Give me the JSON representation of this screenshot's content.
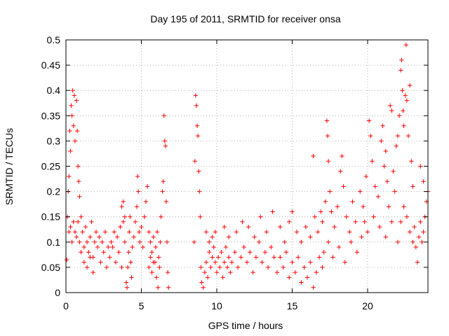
{
  "chart_data": {
    "type": "scatter",
    "title": "Day 195 of 2011, SRMTID for receiver onsa",
    "xlabel": "GPS time / hours",
    "ylabel": "SRMTID / TECUs",
    "xlim": [
      0,
      24
    ],
    "ylim": [
      0,
      0.5
    ],
    "x_ticks": [
      0,
      5,
      10,
      15,
      20
    ],
    "x_tick_labels": [
      "0",
      "5",
      "10",
      "15",
      "20"
    ],
    "y_ticks": [
      0,
      0.05,
      0.1,
      0.15,
      0.2,
      0.25,
      0.3,
      0.35,
      0.4,
      0.45,
      0.5
    ],
    "y_tick_labels": [
      "0",
      "0.05",
      "0.1",
      "0.15",
      "0.2",
      "0.25",
      "0.3",
      "0.35",
      "0.4",
      "0.45",
      "0.5"
    ],
    "grid": true,
    "marker": "+",
    "marker_color": "#ff0000",
    "series": [
      {
        "name": "SRMTID",
        "points": [
          [
            0.05,
            0.065
          ],
          [
            0.1,
            0.15
          ],
          [
            0.15,
            0.2
          ],
          [
            0.2,
            0.23
          ],
          [
            0.25,
            0.32
          ],
          [
            0.3,
            0.28
          ],
          [
            0.35,
            0.37
          ],
          [
            0.4,
            0.35
          ],
          [
            0.45,
            0.4
          ],
          [
            0.5,
            0.33
          ],
          [
            0.55,
            0.39
          ],
          [
            0.6,
            0.3
          ],
          [
            0.7,
            0.38
          ],
          [
            0.75,
            0.32
          ],
          [
            0.8,
            0.25
          ],
          [
            0.85,
            0.22
          ],
          [
            0.9,
            0.19
          ],
          [
            0.2,
            0.12
          ],
          [
            0.3,
            0.13
          ],
          [
            0.4,
            0.1
          ],
          [
            0.5,
            0.14
          ],
          [
            0.6,
            0.12
          ],
          [
            0.7,
            0.11
          ],
          [
            0.8,
            0.14
          ],
          [
            0.9,
            0.1
          ],
          [
            1.0,
            0.15
          ],
          [
            1.1,
            0.12
          ],
          [
            1.2,
            0.09
          ],
          [
            1.3,
            0.13
          ],
          [
            1.4,
            0.1
          ],
          [
            1.5,
            0.08
          ],
          [
            1.6,
            0.11
          ],
          [
            1.7,
            0.14
          ],
          [
            1.8,
            0.07
          ],
          [
            1.9,
            0.1
          ],
          [
            2.0,
            0.12
          ],
          [
            1.0,
            0.08
          ],
          [
            1.2,
            0.06
          ],
          [
            1.4,
            0.05
          ],
          [
            1.6,
            0.07
          ],
          [
            1.8,
            0.04
          ],
          [
            2.1,
            0.09
          ],
          [
            2.3,
            0.06
          ],
          [
            2.5,
            0.08
          ],
          [
            2.7,
            0.05
          ],
          [
            2.9,
            0.07
          ],
          [
            3.1,
            0.09
          ],
          [
            3.3,
            0.06
          ],
          [
            3.5,
            0.08
          ],
          [
            3.7,
            0.05
          ],
          [
            3.9,
            0.1
          ],
          [
            2.2,
            0.11
          ],
          [
            2.4,
            0.1
          ],
          [
            2.6,
            0.12
          ],
          [
            2.8,
            0.09
          ],
          [
            3.0,
            0.1
          ],
          [
            3.2,
            0.12
          ],
          [
            3.4,
            0.11
          ],
          [
            3.6,
            0.13
          ],
          [
            3.8,
            0.14
          ],
          [
            3.7,
            0.17
          ],
          [
            3.8,
            0.18
          ],
          [
            3.9,
            0.15
          ],
          [
            4.0,
            0.02
          ],
          [
            4.05,
            0.01
          ],
          [
            4.1,
            0.05
          ],
          [
            4.15,
            0.08
          ],
          [
            4.2,
            0.12
          ],
          [
            4.25,
            0.15
          ],
          [
            4.3,
            0.06
          ],
          [
            4.35,
            0.03
          ],
          [
            4.4,
            0.09
          ],
          [
            4.5,
            0.11
          ],
          [
            4.6,
            0.14
          ],
          [
            4.7,
            0.17
          ],
          [
            4.75,
            0.23
          ],
          [
            4.8,
            0.2
          ],
          [
            4.85,
            0.12
          ],
          [
            4.9,
            0.1
          ],
          [
            5.0,
            0.13
          ],
          [
            5.1,
            0.09
          ],
          [
            5.2,
            0.15
          ],
          [
            5.3,
            0.18
          ],
          [
            5.4,
            0.21
          ],
          [
            5.5,
            0.12
          ],
          [
            5.6,
            0.1
          ],
          [
            5.7,
            0.08
          ],
          [
            5.8,
            0.11
          ],
          [
            5.9,
            0.06
          ],
          [
            6.0,
            0.03
          ],
          [
            6.1,
            0.01
          ],
          [
            6.2,
            0.05
          ],
          [
            6.3,
            0.15
          ],
          [
            6.4,
            0.2
          ],
          [
            6.45,
            0.22
          ],
          [
            6.5,
            0.35
          ],
          [
            6.55,
            0.3
          ],
          [
            6.6,
            0.29
          ],
          [
            6.65,
            0.18
          ],
          [
            6.7,
            0.1
          ],
          [
            6.75,
            0.04
          ],
          [
            6.8,
            0.01
          ],
          [
            5.5,
            0.05
          ],
          [
            5.6,
            0.07
          ],
          [
            5.7,
            0.04
          ],
          [
            5.8,
            0.06
          ],
          [
            5.95,
            0.09
          ],
          [
            6.05,
            0.12
          ],
          [
            6.15,
            0.07
          ],
          [
            6.25,
            0.1
          ],
          [
            8.5,
            0.1
          ],
          [
            8.55,
            0.26
          ],
          [
            8.6,
            0.39
          ],
          [
            8.65,
            0.37
          ],
          [
            8.7,
            0.33
          ],
          [
            8.75,
            0.31
          ],
          [
            8.8,
            0.24
          ],
          [
            8.85,
            0.2
          ],
          [
            8.9,
            0.15
          ],
          [
            8.95,
            0.05
          ],
          [
            9.0,
            0.02
          ],
          [
            9.1,
            0.01
          ],
          [
            9.2,
            0.04
          ],
          [
            9.3,
            0.06
          ],
          [
            9.4,
            0.03
          ],
          [
            9.5,
            0.08
          ],
          [
            9.6,
            0.05
          ],
          [
            9.7,
            0.07
          ],
          [
            9.8,
            0.09
          ],
          [
            9.9,
            0.06
          ],
          [
            10.0,
            0.04
          ],
          [
            10.1,
            0.07
          ],
          [
            10.2,
            0.05
          ],
          [
            10.3,
            0.08
          ],
          [
            10.4,
            0.03
          ],
          [
            10.5,
            0.06
          ],
          [
            10.6,
            0.09
          ],
          [
            10.7,
            0.05
          ],
          [
            10.8,
            0.07
          ],
          [
            10.9,
            0.04
          ],
          [
            9.3,
            0.12
          ],
          [
            9.5,
            0.1
          ],
          [
            9.7,
            0.11
          ],
          [
            9.9,
            0.12
          ],
          [
            10.5,
            0.13
          ],
          [
            10.8,
            0.11
          ],
          [
            11.0,
            0.06
          ],
          [
            11.2,
            0.08
          ],
          [
            11.4,
            0.05
          ],
          [
            11.6,
            0.07
          ],
          [
            11.8,
            0.09
          ],
          [
            12.0,
            0.06
          ],
          [
            12.2,
            0.08
          ],
          [
            12.4,
            0.04
          ],
          [
            12.6,
            0.07
          ],
          [
            12.8,
            0.1
          ],
          [
            13.0,
            0.06
          ],
          [
            13.2,
            0.08
          ],
          [
            13.4,
            0.05
          ],
          [
            13.6,
            0.09
          ],
          [
            13.8,
            0.07
          ],
          [
            14.0,
            0.04
          ],
          [
            11.3,
            0.12
          ],
          [
            11.7,
            0.14
          ],
          [
            12.1,
            0.13
          ],
          [
            12.5,
            0.11
          ],
          [
            12.9,
            0.15
          ],
          [
            13.3,
            0.12
          ],
          [
            13.7,
            0.16
          ],
          [
            14.2,
            0.13
          ],
          [
            14.5,
            0.1
          ],
          [
            14.8,
            0.14
          ],
          [
            15.0,
            0.16
          ],
          [
            14.2,
            0.07
          ],
          [
            14.4,
            0.05
          ],
          [
            14.6,
            0.08
          ],
          [
            14.8,
            0.03
          ],
          [
            15.0,
            0.06
          ],
          [
            15.2,
            0.04
          ],
          [
            15.4,
            0.07
          ],
          [
            15.6,
            0.02
          ],
          [
            15.8,
            0.05
          ],
          [
            16.0,
            0.03
          ],
          [
            16.2,
            0.06
          ],
          [
            16.4,
            0.01
          ],
          [
            16.6,
            0.04
          ],
          [
            16.8,
            0.07
          ],
          [
            17.0,
            0.05
          ],
          [
            15.3,
            0.12
          ],
          [
            15.6,
            0.1
          ],
          [
            15.9,
            0.13
          ],
          [
            16.2,
            0.11
          ],
          [
            16.4,
            0.27
          ],
          [
            16.5,
            0.15
          ],
          [
            16.7,
            0.12
          ],
          [
            16.9,
            0.16
          ],
          [
            17.0,
            0.14
          ],
          [
            17.2,
            0.18
          ],
          [
            17.3,
            0.34
          ],
          [
            17.35,
            0.31
          ],
          [
            17.4,
            0.26
          ],
          [
            17.5,
            0.2
          ],
          [
            17.6,
            0.16
          ],
          [
            17.8,
            0.13
          ],
          [
            18.0,
            0.17
          ],
          [
            18.2,
            0.24
          ],
          [
            18.3,
            0.27
          ],
          [
            18.4,
            0.21
          ],
          [
            18.6,
            0.15
          ],
          [
            18.8,
            0.12
          ],
          [
            19.0,
            0.18
          ],
          [
            19.2,
            0.14
          ],
          [
            17.1,
            0.08
          ],
          [
            17.4,
            0.1
          ],
          [
            17.7,
            0.07
          ],
          [
            18.1,
            0.09
          ],
          [
            18.5,
            0.06
          ],
          [
            18.9,
            0.1
          ],
          [
            19.3,
            0.08
          ],
          [
            19.6,
            0.11
          ],
          [
            19.5,
            0.2
          ],
          [
            19.7,
            0.17
          ],
          [
            19.9,
            0.23
          ],
          [
            20.1,
            0.34
          ],
          [
            20.2,
            0.31
          ],
          [
            20.3,
            0.26
          ],
          [
            20.5,
            0.21
          ],
          [
            20.7,
            0.19
          ],
          [
            20.9,
            0.3
          ],
          [
            21.0,
            0.33
          ],
          [
            21.1,
            0.25
          ],
          [
            21.2,
            0.28
          ],
          [
            21.3,
            0.22
          ],
          [
            21.4,
            0.17
          ],
          [
            21.5,
            0.37
          ],
          [
            21.6,
            0.36
          ],
          [
            21.7,
            0.24
          ],
          [
            19.8,
            0.14
          ],
          [
            20.0,
            0.12
          ],
          [
            20.4,
            0.15
          ],
          [
            20.8,
            0.13
          ],
          [
            21.2,
            0.11
          ],
          [
            21.6,
            0.14
          ],
          [
            22.0,
            0.1
          ],
          [
            21.8,
            0.2
          ],
          [
            21.9,
            0.29
          ],
          [
            22.0,
            0.31
          ],
          [
            22.1,
            0.35
          ],
          [
            22.2,
            0.44
          ],
          [
            22.25,
            0.46
          ],
          [
            22.3,
            0.4
          ],
          [
            22.35,
            0.36
          ],
          [
            22.4,
            0.33
          ],
          [
            22.5,
            0.39
          ],
          [
            22.55,
            0.49
          ],
          [
            22.6,
            0.38
          ],
          [
            22.7,
            0.31
          ],
          [
            22.8,
            0.41
          ],
          [
            22.9,
            0.26
          ],
          [
            23.0,
            0.21
          ],
          [
            23.1,
            0.13
          ],
          [
            23.2,
            0.09
          ],
          [
            23.3,
            0.06
          ],
          [
            23.4,
            0.11
          ],
          [
            23.5,
            0.14
          ],
          [
            23.6,
            0.1
          ],
          [
            23.7,
            0.12
          ],
          [
            23.8,
            0.15
          ],
          [
            23.9,
            0.18
          ],
          [
            24.0,
            0.2
          ],
          [
            23.5,
            0.25
          ],
          [
            23.7,
            0.22
          ],
          [
            22.6,
            0.15
          ],
          [
            22.8,
            0.12
          ],
          [
            23.0,
            0.1
          ],
          [
            22.4,
            0.17
          ],
          [
            22.2,
            0.14
          ]
        ]
      }
    ]
  }
}
